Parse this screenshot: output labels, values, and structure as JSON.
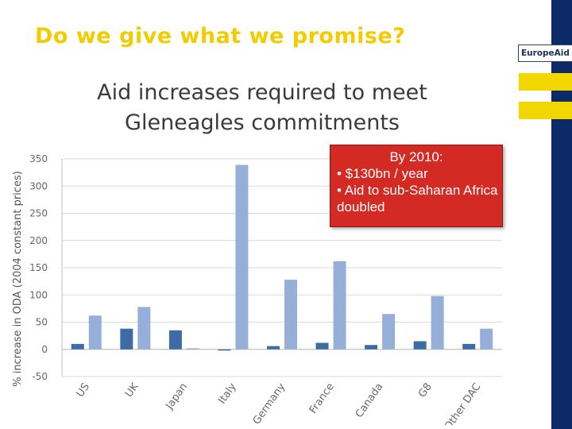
{
  "slide": {
    "title": "Do we give what we promise?",
    "brand": "EuropeAid",
    "brand_colors": {
      "navy": "#0e2a66",
      "yellow": "#f2d600",
      "title_yellow": "#f2cc00"
    }
  },
  "callout": {
    "heading": "By 2010:",
    "bullets": [
      "• $130bn / year",
      "• Aid to sub-Saharan Africa doubled"
    ],
    "color": "#d42a24"
  },
  "chart_data": {
    "type": "bar",
    "title_lines": [
      "Aid increases required to meet",
      "Gleneagles commitments"
    ],
    "ylabel": "% increase in ODA (2004 constant prices)",
    "xlabel": "",
    "categories": [
      "US",
      "UK",
      "Japan",
      "Italy",
      "Germany",
      "France",
      "Canada",
      "G8",
      "Other DAC"
    ],
    "series": [
      {
        "values": [
          10,
          38,
          35,
          -2,
          6,
          12,
          8,
          15,
          10
        ],
        "color": "#3e6aa6"
      },
      {
        "values": [
          62,
          78,
          2,
          339,
          128,
          162,
          65,
          98,
          38
        ],
        "color": "#96afd9"
      }
    ],
    "ylim": [
      -50,
      350
    ],
    "yticks": [
      -50,
      0,
      50,
      100,
      150,
      200,
      250,
      300,
      350
    ],
    "grid": true,
    "legend": "none"
  }
}
